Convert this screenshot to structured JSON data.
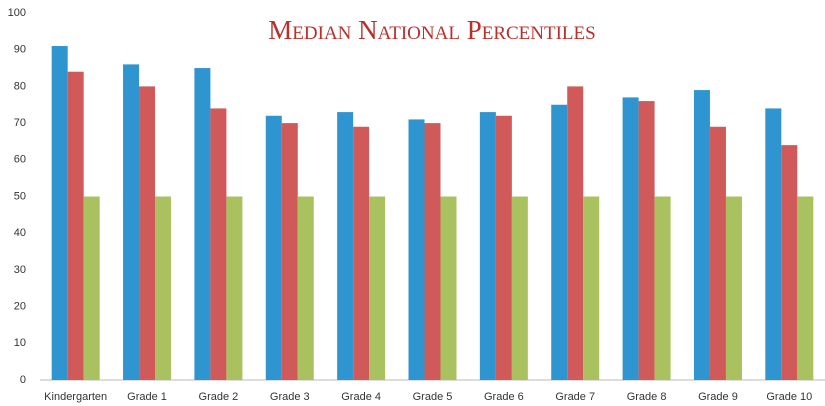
{
  "chart_data": {
    "type": "bar",
    "title": "Median National Percentiles",
    "categories": [
      "Kindergarten",
      "Grade 1",
      "Grade 2",
      "Grade 3",
      "Grade 4",
      "Grade 5",
      "Grade 6",
      "Grade 7",
      "Grade 8",
      "Grade 9",
      "Grade 10"
    ],
    "series": [
      {
        "color": "#2e95d0",
        "values": [
          91,
          86,
          85,
          72,
          73,
          71,
          73,
          75,
          77,
          79,
          74
        ]
      },
      {
        "color": "#d05a5a",
        "values": [
          84,
          80,
          74,
          70,
          69,
          70,
          72,
          80,
          76,
          69,
          64
        ]
      },
      {
        "color": "#a9c25f",
        "values": [
          50,
          50,
          50,
          50,
          50,
          50,
          50,
          50,
          50,
          50,
          50
        ]
      }
    ],
    "ylim": [
      0,
      100
    ],
    "yticks": [
      0,
      10,
      20,
      30,
      40,
      50,
      60,
      70,
      80,
      90,
      100
    ],
    "grid": false
  }
}
